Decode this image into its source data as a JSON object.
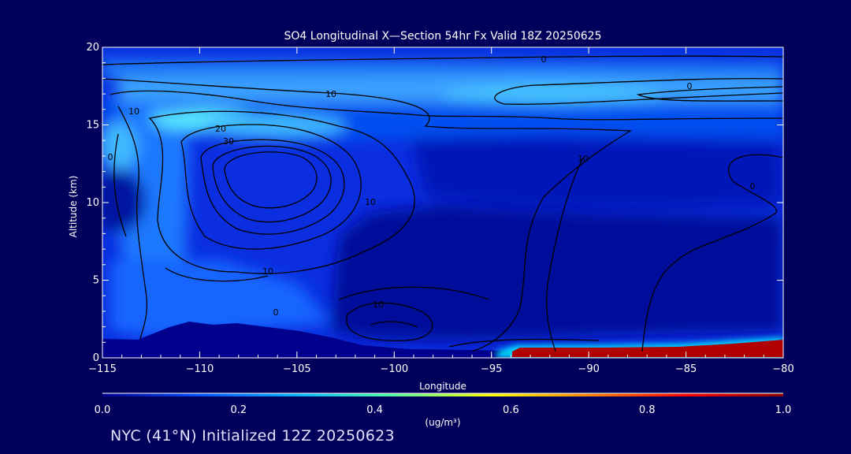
{
  "chart_data": {
    "type": "heatmap",
    "title": "SO4 Longitudinal X—Section 54hr  Fx Valid 18Z 20250625",
    "xlabel": "Longitude",
    "ylabel": "Altitude (km)",
    "xlim": [
      -115,
      -80
    ],
    "ylim": [
      0,
      20
    ],
    "x_ticks": [
      "−115",
      "−110",
      "−105",
      "−100",
      "−95",
      "−90",
      "−85",
      "−80"
    ],
    "y_ticks": [
      "0",
      "5",
      "10",
      "15",
      "20"
    ],
    "colorbar": {
      "label": "(ug/m³)",
      "range": [
        0,
        1
      ],
      "ticks": [
        "0.0",
        "0.2",
        "0.4",
        "0.6",
        "0.8",
        "1.0"
      ],
      "colors": [
        "#00008c",
        "#0050ff",
        "#00b4ff",
        "#50ffa0",
        "#ffff00",
        "#ff8000",
        "#ff0000",
        "#8b0000"
      ]
    },
    "contour_labels": [
      "0",
      "10",
      "10",
      "20",
      "30",
      "0",
      "10",
      "10",
      "0",
      "10",
      "0",
      "0",
      "10"
    ],
    "contour_levels": [
      0,
      10,
      20,
      30
    ],
    "concentration_regions": [
      {
        "lon": -109.5,
        "alt": 15.2,
        "value": 0.42
      },
      {
        "lon": -114.5,
        "alt": 10.2,
        "value": 0.12
      },
      {
        "lon": -112,
        "alt": 16.8,
        "value": 0.3
      },
      {
        "lon": -100,
        "alt": 17.5,
        "value": 0.2
      },
      {
        "lon": -87,
        "alt": 0.5,
        "value": 1.0
      }
    ]
  },
  "footer": {
    "text": "NYC (41°N) Initialized 12Z 20250623"
  },
  "colors": {
    "background": "#00005a",
    "plot_base": "#0a2ee0",
    "axis": "#ffffff",
    "contour": "#000000"
  }
}
